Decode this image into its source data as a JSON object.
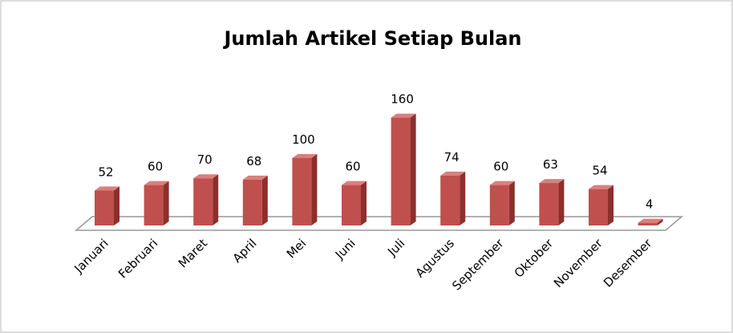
{
  "chart_data": {
    "type": "bar",
    "title": "Jumlah Artikel Setiap Bulan",
    "categories": [
      "Januari",
      "Februari",
      "Maret",
      "April",
      "Mei",
      "Juni",
      "Juli",
      "Agustus",
      "September",
      "Oktober",
      "November",
      "Desember"
    ],
    "values": [
      52,
      60,
      70,
      68,
      100,
      60,
      160,
      74,
      60,
      63,
      54,
      4
    ],
    "color": "#c0504d"
  }
}
